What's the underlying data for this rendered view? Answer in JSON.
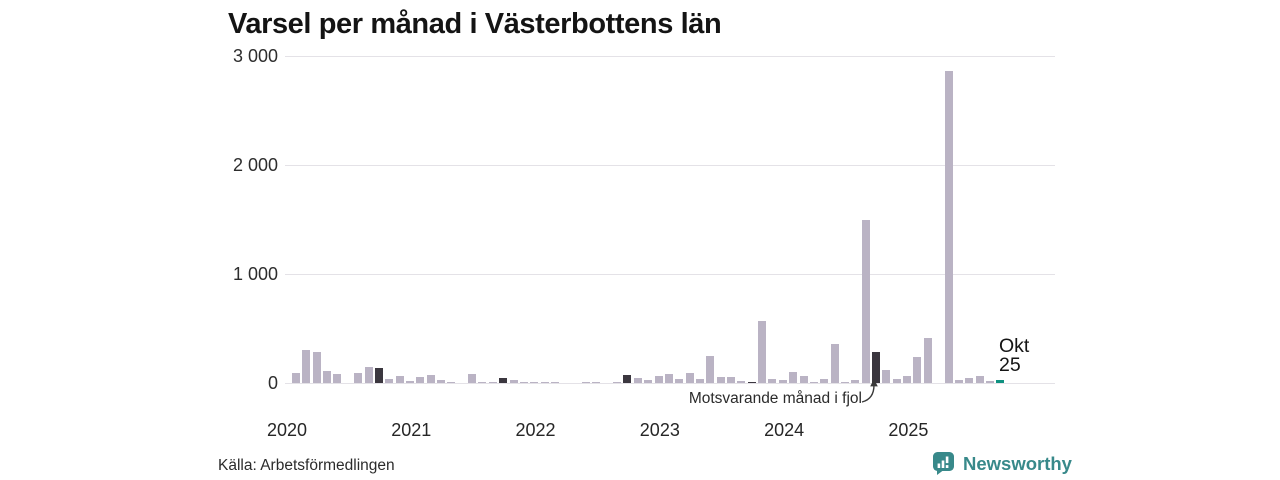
{
  "title": "Varsel per månad i Västerbottens län",
  "chart_data": {
    "type": "bar",
    "title": "Varsel per månad i Västerbottens län",
    "xlabel": "",
    "ylabel": "",
    "ylim": [
      0,
      3000
    ],
    "yticks": [
      0,
      1000,
      2000,
      3000
    ],
    "ytick_labels": [
      "0",
      "1 000",
      "2 000",
      "3 000"
    ],
    "year_labels": [
      "2020",
      "2021",
      "2022",
      "2023",
      "2024",
      "2025"
    ],
    "start_month": "2020-01",
    "end_month": "2025-10",
    "values": [
      0,
      90,
      300,
      285,
      113,
      80,
      0,
      92,
      150,
      135,
      40,
      64,
      21,
      52,
      74,
      25,
      12,
      0,
      80,
      6,
      5,
      50,
      28,
      9,
      9,
      6,
      5,
      0,
      0,
      12,
      6,
      0,
      5,
      70,
      46,
      31,
      64,
      83,
      37,
      90,
      37,
      250,
      52,
      52,
      18,
      12,
      570,
      34,
      28,
      98,
      64,
      6,
      37,
      360,
      12,
      24,
      1500,
      280,
      120,
      37,
      65,
      240,
      415,
      0,
      2860,
      30,
      45,
      67,
      15,
      25
    ],
    "highlighted_october_values": {
      "2020-10": 135,
      "2021-10": 50,
      "2022-10": 70,
      "2023-10": 12,
      "2024-10": 280
    },
    "notable_points": {
      "2023-11": 570,
      "2024-09": 1500,
      "2025-05": 2860,
      "2025-10": 25
    },
    "legend_position": "none",
    "grid": "horizontal",
    "colors": {
      "bar": "#bab3c4",
      "october_bar": "#3b373f",
      "current_bar": "#0e9180",
      "gridline": "#e4e2e7"
    }
  },
  "annotation": {
    "text": "Motsvarande månad i fjol"
  },
  "current_month": {
    "line1": "Okt",
    "line2": "25"
  },
  "footer": {
    "source": "Källa: Arbetsförmedlingen",
    "brand": "Newsworthy",
    "brand_color": "#38898a"
  }
}
